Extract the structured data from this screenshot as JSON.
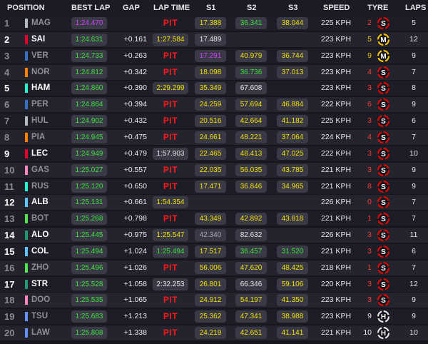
{
  "columns": {
    "position": "POSITION",
    "best_lap": "BEST LAP",
    "gap": "GAP",
    "lap_time": "LAP TIME",
    "s1": "S1",
    "s2": "S2",
    "s3": "S3",
    "speed": "SPEED",
    "tyre": "TYRE",
    "laps": "LAPS"
  },
  "colors": {
    "purple": "#d040ff",
    "green": "#3fe03f",
    "yellow": "#f0e000",
    "pit": "#ff1a1a",
    "soft": "#e10600",
    "medium": "#f5c400",
    "hard": "#e6e6e6"
  },
  "rows": [
    {
      "pos": "1",
      "code": "MAG",
      "team_color": "#b6babd",
      "best": "1:24.470",
      "best_c": "purple",
      "gap": "",
      "lap": "PIT",
      "lap_c": "pit",
      "s1": "17.388",
      "s1_c": "yellow",
      "s2": "36.341",
      "s2_c": "green",
      "s3": "38.044",
      "s3_c": "yellow",
      "speed": "225 KPH",
      "age": "2",
      "age_c": "red",
      "tyre": "S",
      "tyre_c": "#e10600",
      "laps": "5",
      "on_track": false
    },
    {
      "pos": "2",
      "code": "SAI",
      "team_color": "#e8002d",
      "best": "1:24.631",
      "best_c": "green",
      "gap": "+0.161",
      "lap": "1:27.584",
      "lap_c": "yellow",
      "s1": "17.489",
      "s1_c": "white",
      "s2": "",
      "s2_c": "",
      "s3": "",
      "s3_c": "",
      "speed": "223 KPH",
      "age": "5",
      "age_c": "yellow",
      "tyre": "M",
      "tyre_c": "#f5c400",
      "laps": "12",
      "on_track": true
    },
    {
      "pos": "3",
      "code": "VER",
      "team_color": "#3671c6",
      "best": "1:24.733",
      "best_c": "green",
      "gap": "+0.263",
      "lap": "PIT",
      "lap_c": "pit",
      "s1": "17.291",
      "s1_c": "purple",
      "s2": "40.979",
      "s2_c": "yellow",
      "s3": "36.744",
      "s3_c": "yellow",
      "speed": "223 KPH",
      "age": "9",
      "age_c": "yellow",
      "tyre": "M",
      "tyre_c": "#f5c400",
      "laps": "9",
      "on_track": false
    },
    {
      "pos": "4",
      "code": "NOR",
      "team_color": "#ff8000",
      "best": "1:24.812",
      "best_c": "green",
      "gap": "+0.342",
      "lap": "PIT",
      "lap_c": "pit",
      "s1": "18.098",
      "s1_c": "yellow",
      "s2": "36.736",
      "s2_c": "green",
      "s3": "37.013",
      "s3_c": "yellow",
      "speed": "223 KPH",
      "age": "4",
      "age_c": "red",
      "tyre": "S",
      "tyre_c": "#e10600",
      "laps": "7",
      "on_track": false
    },
    {
      "pos": "5",
      "code": "HAM",
      "team_color": "#27f4d2",
      "best": "1:24.860",
      "best_c": "green",
      "gap": "+0.390",
      "lap": "2:29.299",
      "lap_c": "yellow",
      "s1": "35.349",
      "s1_c": "yellow",
      "s2": "67.608",
      "s2_c": "white",
      "s3": "",
      "s3_c": "",
      "speed": "223 KPH",
      "age": "3",
      "age_c": "red",
      "tyre": "S",
      "tyre_c": "#e10600",
      "laps": "8",
      "on_track": true
    },
    {
      "pos": "6",
      "code": "PER",
      "team_color": "#3671c6",
      "best": "1:24.864",
      "best_c": "green",
      "gap": "+0.394",
      "lap": "PIT",
      "lap_c": "pit",
      "s1": "24.259",
      "s1_c": "yellow",
      "s2": "57.694",
      "s2_c": "yellow",
      "s3": "46.884",
      "s3_c": "yellow",
      "speed": "222 KPH",
      "age": "6",
      "age_c": "red",
      "tyre": "S",
      "tyre_c": "#e10600",
      "laps": "9",
      "on_track": false
    },
    {
      "pos": "7",
      "code": "HUL",
      "team_color": "#b6babd",
      "best": "1:24.902",
      "best_c": "green",
      "gap": "+0.432",
      "lap": "PIT",
      "lap_c": "pit",
      "s1": "20.516",
      "s1_c": "yellow",
      "s2": "42.664",
      "s2_c": "yellow",
      "s3": "41.182",
      "s3_c": "yellow",
      "speed": "225 KPH",
      "age": "3",
      "age_c": "red",
      "tyre": "S",
      "tyre_c": "#e10600",
      "laps": "6",
      "on_track": false
    },
    {
      "pos": "8",
      "code": "PIA",
      "team_color": "#ff8000",
      "best": "1:24.945",
      "best_c": "green",
      "gap": "+0.475",
      "lap": "PIT",
      "lap_c": "pit",
      "s1": "24.661",
      "s1_c": "yellow",
      "s2": "48.221",
      "s2_c": "yellow",
      "s3": "37.064",
      "s3_c": "yellow",
      "speed": "224 KPH",
      "age": "4",
      "age_c": "red",
      "tyre": "S",
      "tyre_c": "#e10600",
      "laps": "7",
      "on_track": false
    },
    {
      "pos": "9",
      "code": "LEC",
      "team_color": "#e8002d",
      "best": "1:24.949",
      "best_c": "green",
      "gap": "+0.479",
      "lap": "1:57.903",
      "lap_c": "white",
      "s1": "22.465",
      "s1_c": "yellow",
      "s2": "48.413",
      "s2_c": "yellow",
      "s3": "47.025",
      "s3_c": "yellow",
      "speed": "222 KPH",
      "age": "3",
      "age_c": "red",
      "tyre": "S",
      "tyre_c": "#e10600",
      "laps": "10",
      "on_track": true
    },
    {
      "pos": "10",
      "code": "GAS",
      "team_color": "#ff87bc",
      "best": "1:25.027",
      "best_c": "green",
      "gap": "+0.557",
      "lap": "PIT",
      "lap_c": "pit",
      "s1": "22.035",
      "s1_c": "yellow",
      "s2": "56.035",
      "s2_c": "yellow",
      "s3": "43.785",
      "s3_c": "yellow",
      "speed": "221 KPH",
      "age": "3",
      "age_c": "red",
      "tyre": "S",
      "tyre_c": "#e10600",
      "laps": "9",
      "on_track": false
    },
    {
      "pos": "11",
      "code": "RUS",
      "team_color": "#27f4d2",
      "best": "1:25.120",
      "best_c": "green",
      "gap": "+0.650",
      "lap": "PIT",
      "lap_c": "pit",
      "s1": "17.471",
      "s1_c": "yellow",
      "s2": "36.846",
      "s2_c": "yellow",
      "s3": "34.965",
      "s3_c": "yellow",
      "speed": "221 KPH",
      "age": "8",
      "age_c": "red",
      "tyre": "S",
      "tyre_c": "#e10600",
      "laps": "9",
      "on_track": false
    },
    {
      "pos": "12",
      "code": "ALB",
      "team_color": "#64c4ff",
      "best": "1:25.131",
      "best_c": "green",
      "gap": "+0.661",
      "lap": "1:54.354",
      "lap_c": "yellow",
      "s1": "",
      "s1_c": "",
      "s2": "",
      "s2_c": "",
      "s3": "",
      "s3_c": "",
      "speed": "226 KPH",
      "age": "0",
      "age_c": "red",
      "tyre": "S",
      "tyre_c": "#e10600",
      "laps": "7",
      "on_track": true
    },
    {
      "pos": "13",
      "code": "BOT",
      "team_color": "#52e252",
      "best": "1:25.268",
      "best_c": "green",
      "gap": "+0.798",
      "lap": "PIT",
      "lap_c": "pit",
      "s1": "43.349",
      "s1_c": "yellow",
      "s2": "42.892",
      "s2_c": "yellow",
      "s3": "43.818",
      "s3_c": "yellow",
      "speed": "221 KPH",
      "age": "1",
      "age_c": "red",
      "tyre": "S",
      "tyre_c": "#e10600",
      "laps": "7",
      "on_track": false
    },
    {
      "pos": "14",
      "code": "ALO",
      "team_color": "#229971",
      "best": "1:25.445",
      "best_c": "green",
      "gap": "+0.975",
      "lap": "1:25.547",
      "lap_c": "yellow",
      "s1": "42.340",
      "s1_c": "gray",
      "s2": "82.632",
      "s2_c": "white",
      "s3": "",
      "s3_c": "",
      "speed": "226 KPH",
      "age": "3",
      "age_c": "red",
      "tyre": "S",
      "tyre_c": "#e10600",
      "laps": "11",
      "on_track": true
    },
    {
      "pos": "15",
      "code": "COL",
      "team_color": "#64c4ff",
      "best": "1:25.494",
      "best_c": "green",
      "gap": "+1.024",
      "lap": "1:25.494",
      "lap_c": "green",
      "s1": "17.517",
      "s1_c": "yellow",
      "s2": "36.457",
      "s2_c": "green",
      "s3": "31.520",
      "s3_c": "green",
      "speed": "221 KPH",
      "age": "3",
      "age_c": "red",
      "tyre": "S",
      "tyre_c": "#e10600",
      "laps": "6",
      "on_track": true
    },
    {
      "pos": "16",
      "code": "ZHO",
      "team_color": "#52e252",
      "best": "1:25.496",
      "best_c": "green",
      "gap": "+1.026",
      "lap": "PIT",
      "lap_c": "pit",
      "s1": "56.006",
      "s1_c": "yellow",
      "s2": "47.620",
      "s2_c": "yellow",
      "s3": "48.425",
      "s3_c": "yellow",
      "speed": "218 KPH",
      "age": "1",
      "age_c": "red",
      "tyre": "S",
      "tyre_c": "#e10600",
      "laps": "7",
      "on_track": false
    },
    {
      "pos": "17",
      "code": "STR",
      "team_color": "#229971",
      "best": "1:25.528",
      "best_c": "green",
      "gap": "+1.058",
      "lap": "2:32.253",
      "lap_c": "white",
      "s1": "26.801",
      "s1_c": "yellow",
      "s2": "66.346",
      "s2_c": "white",
      "s3": "59.106",
      "s3_c": "yellow",
      "speed": "220 KPH",
      "age": "3",
      "age_c": "red",
      "tyre": "S",
      "tyre_c": "#e10600",
      "laps": "12",
      "on_track": true
    },
    {
      "pos": "18",
      "code": "DOO",
      "team_color": "#ff87bc",
      "best": "1:25.535",
      "best_c": "green",
      "gap": "+1.065",
      "lap": "PIT",
      "lap_c": "pit",
      "s1": "24.912",
      "s1_c": "yellow",
      "s2": "54.197",
      "s2_c": "yellow",
      "s3": "41.350",
      "s3_c": "yellow",
      "speed": "223 KPH",
      "age": "3",
      "age_c": "red",
      "tyre": "S",
      "tyre_c": "#e10600",
      "laps": "9",
      "on_track": false
    },
    {
      "pos": "19",
      "code": "TSU",
      "team_color": "#6692ff",
      "best": "1:25.683",
      "best_c": "green",
      "gap": "+1.213",
      "lap": "PIT",
      "lap_c": "pit",
      "s1": "25.362",
      "s1_c": "yellow",
      "s2": "47.341",
      "s2_c": "yellow",
      "s3": "38.988",
      "s3_c": "yellow",
      "speed": "223 KPH",
      "age": "9",
      "age_c": "white",
      "tyre": "H",
      "tyre_c": "#e6e6e6",
      "laps": "9",
      "on_track": false
    },
    {
      "pos": "20",
      "code": "LAW",
      "team_color": "#6692ff",
      "best": "1:25.808",
      "best_c": "green",
      "gap": "+1.338",
      "lap": "PIT",
      "lap_c": "pit",
      "s1": "24.219",
      "s1_c": "yellow",
      "s2": "42.651",
      "s2_c": "yellow",
      "s3": "41.141",
      "s3_c": "yellow",
      "speed": "221 KPH",
      "age": "10",
      "age_c": "white",
      "tyre": "H",
      "tyre_c": "#e6e6e6",
      "laps": "10",
      "on_track": false
    }
  ]
}
